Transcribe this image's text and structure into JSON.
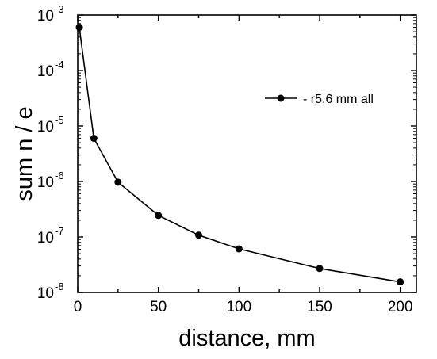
{
  "chart_data": {
    "type": "line",
    "xlabel": "distance, mm",
    "ylabel": "sum n / e",
    "xlim": [
      0,
      210
    ],
    "ylim": [
      1e-08,
      0.001
    ],
    "yscale": "log",
    "xticks": [
      0,
      50,
      100,
      150,
      200
    ],
    "yticks": [
      {
        "value": 1e-08,
        "base": "10",
        "exp": "-8"
      },
      {
        "value": 1e-07,
        "base": "10",
        "exp": "-7"
      },
      {
        "value": 1e-06,
        "base": "10",
        "exp": "-6"
      },
      {
        "value": 1e-05,
        "base": "10",
        "exp": "-5"
      },
      {
        "value": 0.0001,
        "base": "10",
        "exp": "-4"
      },
      {
        "value": 0.001,
        "base": "10",
        "exp": "-3"
      }
    ],
    "grid": false,
    "legend_position": "top-right",
    "series": [
      {
        "name": "r5.6 mm all",
        "color": "#000000",
        "marker": "circle",
        "x": [
          1,
          10,
          25,
          50,
          75,
          100,
          150,
          200
        ],
        "y": [
          0.0006,
          6e-06,
          9.7e-07,
          2.45e-07,
          1.08e-07,
          6.1e-08,
          2.7e-08,
          1.55e-08
        ]
      }
    ]
  }
}
